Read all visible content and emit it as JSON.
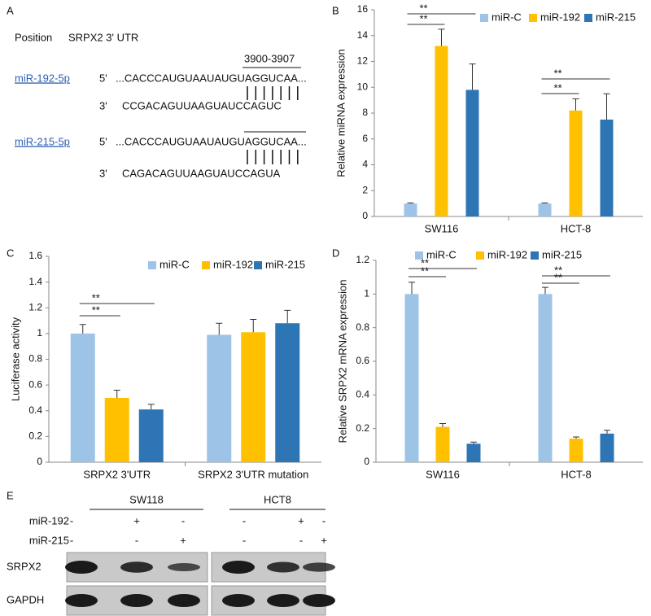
{
  "panel_labels": [
    "A",
    "B",
    "C",
    "D",
    "E"
  ],
  "sequence": {
    "position": "Position",
    "utr": "SRPX2  3' UTR",
    "site": "3900-3907",
    "rows": [
      {
        "name": "miR-192-5p",
        "target_end": "5'",
        "target": "...CACCCAUGUAAUAUGUAGGUCAA...",
        "mirna_end": "3'",
        "mirna": "CCGACAGUUAAGUAUCCAGUC"
      },
      {
        "name": "miR-215-5p",
        "target_end": "5'",
        "target": "...CACCCAUGUAAUAUGUAGGUCAA...",
        "mirna_end": "3'",
        "mirna": "CAGACAGUUAAGUAUCCAGUA"
      }
    ]
  },
  "chart_data": [
    {
      "type": "bar",
      "ylabel": "Relative  miRNA expression",
      "categories": [
        "SW116",
        "HCT-8"
      ],
      "series": [
        {
          "name": "miR-C",
          "color": "#9dc3e6",
          "values": [
            1,
            1
          ],
          "error": [
            0.05,
            0.05
          ]
        },
        {
          "name": "miR-192",
          "color": "#ffc000",
          "values": [
            13.2,
            8.2
          ],
          "error": [
            1.3,
            0.9
          ]
        },
        {
          "name": "miR-215",
          "color": "#2e75b6",
          "values": [
            9.8,
            7.5
          ],
          "error": [
            2.0,
            2.0
          ]
        }
      ],
      "ylim": [
        0,
        16
      ],
      "yticks": [
        0,
        2,
        4,
        6,
        8,
        10,
        12,
        14,
        16
      ],
      "legend": "top-right",
      "annotations": [
        "**",
        "**",
        "**",
        "**"
      ]
    },
    {
      "type": "bar",
      "ylabel": "Luciferase  activity",
      "categories": [
        "SRPX2 3'UTR",
        "SRPX2 3'UTR mutation"
      ],
      "series": [
        {
          "name": "miR-C",
          "color": "#9dc3e6",
          "values": [
            1.0,
            0.99
          ],
          "error": [
            0.07,
            0.09
          ]
        },
        {
          "name": "miR-192",
          "color": "#ffc000",
          "values": [
            0.5,
            1.01
          ],
          "error": [
            0.06,
            0.1
          ]
        },
        {
          "name": "miR-215",
          "color": "#2e75b6",
          "values": [
            0.41,
            1.08
          ],
          "error": [
            0.04,
            0.1
          ]
        }
      ],
      "ylim": [
        0,
        1.6
      ],
      "yticks": [
        0,
        0.2,
        0.4,
        0.6,
        0.8,
        1,
        1.2,
        1.4,
        1.6
      ],
      "legend": "top-right",
      "annotations": [
        "**",
        "**"
      ]
    },
    {
      "type": "bar",
      "ylabel": "Relative  SRPX2  mRNA expression",
      "categories": [
        "SW116",
        "HCT-8"
      ],
      "series": [
        {
          "name": "miR-C",
          "color": "#9dc3e6",
          "values": [
            1.0,
            1.0
          ],
          "error": [
            0.07,
            0.04
          ]
        },
        {
          "name": "miR-192",
          "color": "#ffc000",
          "values": [
            0.21,
            0.14
          ],
          "error": [
            0.02,
            0.01
          ]
        },
        {
          "name": "miR-215",
          "color": "#2e75b6",
          "values": [
            0.11,
            0.17
          ],
          "error": [
            0.01,
            0.02
          ]
        }
      ],
      "ylim": [
        0,
        1.2
      ],
      "yticks": [
        0,
        0.2,
        0.4,
        0.6,
        0.8,
        1,
        1.2
      ],
      "legend": "top-right",
      "annotations": [
        "**",
        "**",
        "**",
        "**"
      ]
    }
  ],
  "blot": {
    "groups": [
      "SW118",
      "HCT8"
    ],
    "conditions": [
      {
        "name": "miR-192",
        "signs": [
          "-",
          "+",
          "-",
          "-",
          "+",
          "-"
        ]
      },
      {
        "name": "miR-215",
        "signs": [
          "-",
          "-",
          "+",
          "-",
          "-",
          "+"
        ]
      }
    ],
    "proteins": [
      "SRPX2",
      "GAPDH"
    ]
  }
}
